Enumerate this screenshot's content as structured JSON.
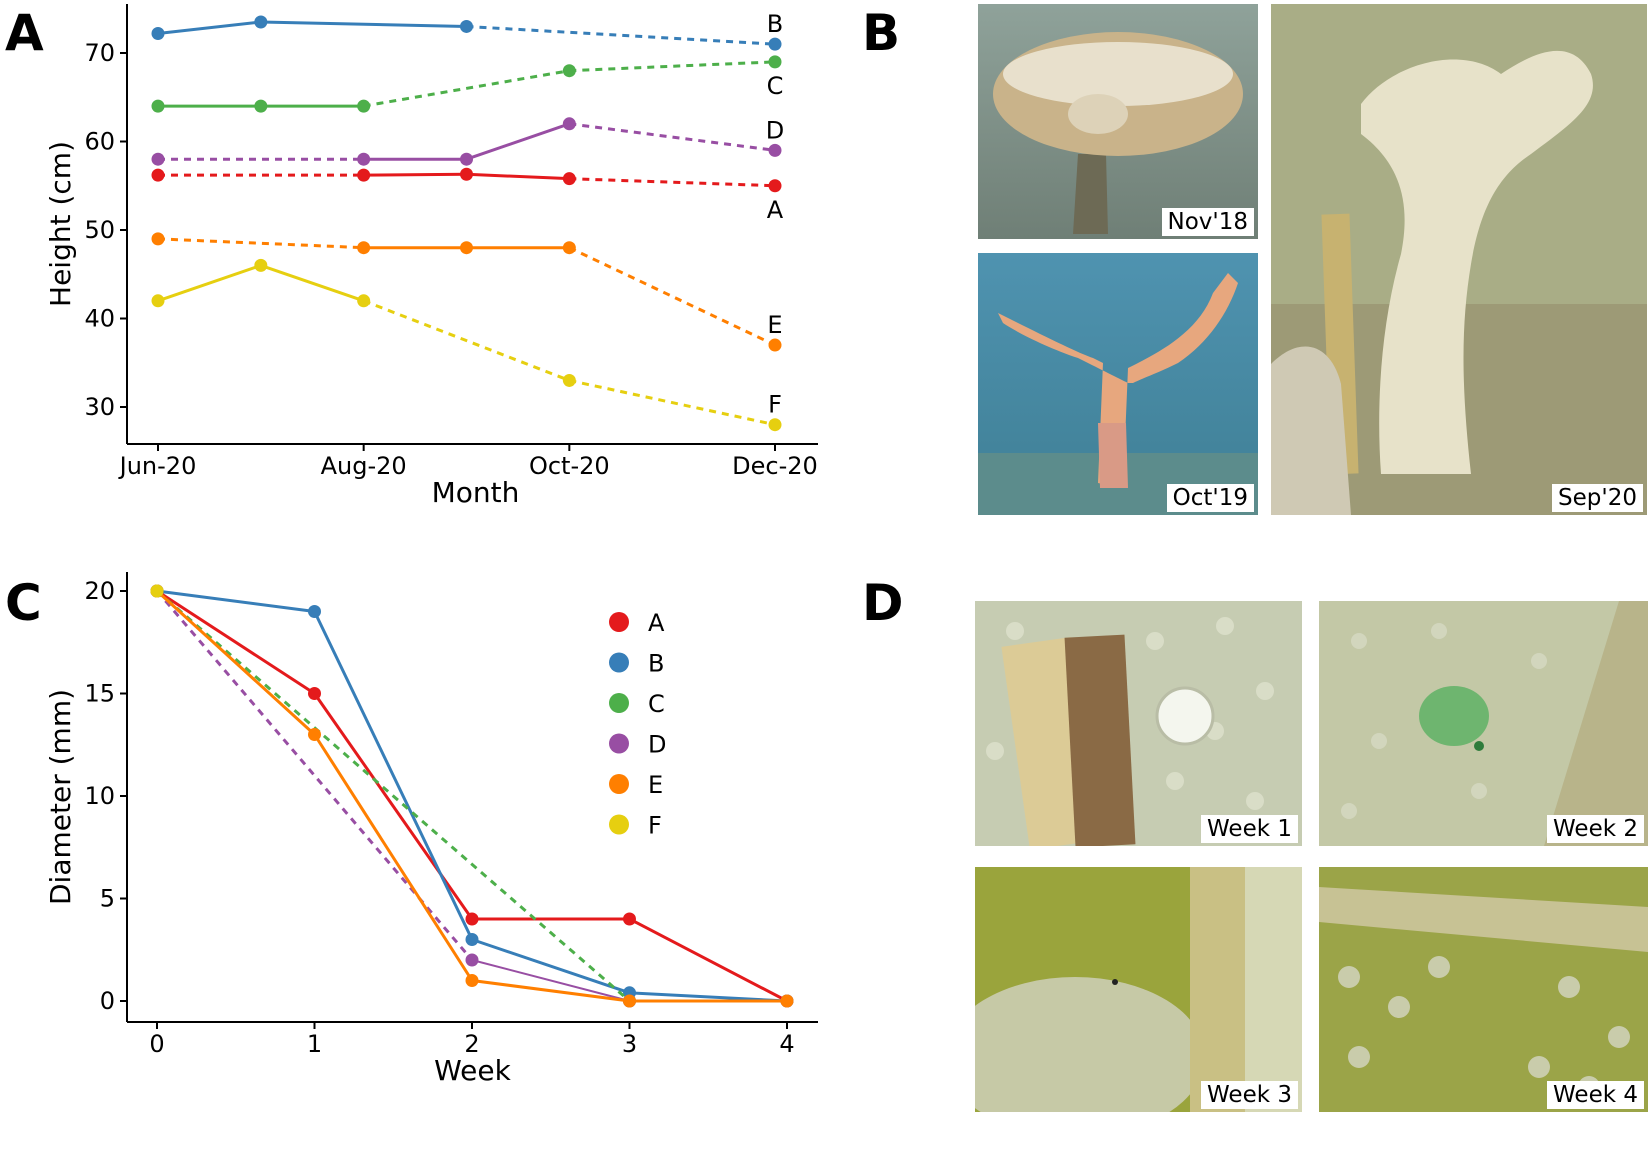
{
  "panels": {
    "a": "A",
    "b": "B",
    "c": "C",
    "d": "D"
  },
  "colors": {
    "A": "#e41a1c",
    "B": "#377eb8",
    "C": "#4daf4a",
    "D": "#984ea3",
    "E": "#ff7f00",
    "F": "#e6cf10"
  },
  "chart_data": [
    {
      "type": "line",
      "panel": "A",
      "xlabel": "Month",
      "ylabel": "Height (cm)",
      "x_ticks": [
        "Jun-20",
        "Aug-20",
        "Oct-20",
        "Dec-20"
      ],
      "ylim": [
        25,
        75
      ],
      "y_ticks": [
        30,
        40,
        50,
        60,
        70
      ],
      "grid": false,
      "series": [
        {
          "name": "A",
          "points": [
            [
              0,
              56.2
            ],
            [
              2,
              56.2
            ],
            [
              3,
              56.3
            ],
            [
              4,
              55.8
            ],
            [
              6,
              55
            ]
          ],
          "style": [
            "dashed",
            "solid",
            "solid",
            "dashed"
          ]
        },
        {
          "name": "B",
          "points": [
            [
              0,
              72.2
            ],
            [
              1,
              73.5
            ],
            [
              3,
              73
            ],
            [
              6,
              71
            ]
          ],
          "style": [
            "solid",
            "solid",
            "dashed"
          ]
        },
        {
          "name": "C",
          "points": [
            [
              0,
              64
            ],
            [
              1,
              64
            ],
            [
              2,
              64
            ],
            [
              4,
              68
            ],
            [
              6,
              69
            ]
          ],
          "style": [
            "solid",
            "solid",
            "dashed",
            "dashed"
          ]
        },
        {
          "name": "D",
          "points": [
            [
              0,
              58
            ],
            [
              2,
              58
            ],
            [
              3,
              58
            ],
            [
              4,
              62
            ],
            [
              6,
              59
            ]
          ],
          "style": [
            "dashed",
            "solid",
            "solid",
            "dashed"
          ]
        },
        {
          "name": "E",
          "points": [
            [
              0,
              49
            ],
            [
              2,
              48
            ],
            [
              3,
              48
            ],
            [
              4,
              48
            ],
            [
              6,
              37
            ]
          ],
          "style": [
            "dashed",
            "solid",
            "solid",
            "dashed"
          ]
        },
        {
          "name": "F",
          "points": [
            [
              0,
              42
            ],
            [
              1,
              46
            ],
            [
              2,
              42
            ],
            [
              4,
              33
            ],
            [
              6,
              28
            ]
          ],
          "style": [
            "solid",
            "solid",
            "dashed",
            "dashed"
          ]
        }
      ]
    },
    {
      "type": "line",
      "panel": "C",
      "xlabel": "Week",
      "ylabel": "Diameter (mm)",
      "x_ticks": [
        0,
        1,
        2,
        3,
        4
      ],
      "y_ticks": [
        0,
        5,
        10,
        15,
        20
      ],
      "ylim": [
        -1,
        21
      ],
      "legend": "top-right",
      "grid": false,
      "series": [
        {
          "name": "A",
          "points": [
            [
              0,
              20
            ],
            [
              1,
              15
            ],
            [
              2,
              4
            ],
            [
              3,
              4
            ],
            [
              4,
              0
            ]
          ],
          "style": [
            "solid",
            "solid",
            "solid",
            "solid"
          ]
        },
        {
          "name": "B",
          "points": [
            [
              0,
              20
            ],
            [
              1,
              19
            ],
            [
              2,
              3
            ],
            [
              3,
              0.4
            ],
            [
              4,
              0
            ]
          ],
          "style": [
            "solid",
            "solid",
            "solid",
            "solid"
          ]
        },
        {
          "name": "C",
          "points": [
            [
              0,
              20
            ],
            [
              3,
              0
            ]
          ],
          "style": [
            "dashed"
          ]
        },
        {
          "name": "D",
          "points": [
            [
              0,
              20
            ],
            [
              2,
              2
            ],
            [
              3,
              0
            ]
          ],
          "style": [
            "dashed",
            "solid"
          ]
        },
        {
          "name": "E",
          "points": [
            [
              0,
              20
            ],
            [
              1,
              13
            ],
            [
              2,
              1
            ],
            [
              3,
              0
            ],
            [
              4,
              0
            ]
          ],
          "style": [
            "solid",
            "solid",
            "solid",
            "solid"
          ]
        },
        {
          "name": "F",
          "points": [
            [
              0,
              20
            ]
          ],
          "style": []
        }
      ]
    }
  ],
  "photos": {
    "b": [
      {
        "label": "Nov'18",
        "icon": "sponge-cup-photo"
      },
      {
        "label": "Oct'19",
        "icon": "sponge-branch-photo"
      },
      {
        "label": "Sep'20",
        "icon": "sponge-ruler-photo"
      }
    ],
    "d": [
      {
        "label": "Week 1",
        "icon": "sponge-hole-photo"
      },
      {
        "label": "Week 2",
        "icon": "sponge-hole-photo"
      },
      {
        "label": "Week 3",
        "icon": "sponge-hole-photo"
      },
      {
        "label": "Week 4",
        "icon": "sponge-hole-photo"
      }
    ]
  }
}
